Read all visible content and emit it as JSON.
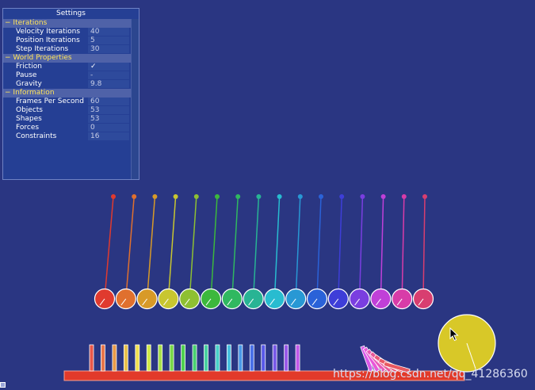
{
  "settings": {
    "title": "Settings",
    "sections": [
      {
        "label": "Iterations",
        "rows": [
          {
            "label": "Velocity Iterations",
            "value": "40"
          },
          {
            "label": "Position Iterations",
            "value": "5"
          },
          {
            "label": "Step Iterations",
            "value": "30"
          }
        ]
      },
      {
        "label": "World Properties",
        "rows": [
          {
            "label": "Friction",
            "value": "✓"
          },
          {
            "label": "Pause",
            "value": "-"
          },
          {
            "label": "Gravity",
            "value": "9.8"
          }
        ]
      },
      {
        "label": "Information",
        "rows": [
          {
            "label": "Frames Per Second",
            "value": "60"
          },
          {
            "label": "Objects",
            "value": "53"
          },
          {
            "label": "Shapes",
            "value": "53"
          },
          {
            "label": "Forces",
            "value": "0"
          },
          {
            "label": "Constraints",
            "value": "16"
          }
        ]
      }
    ],
    "collapse_glyph": "−"
  },
  "scene": {
    "pendulum_colors": [
      "#e03a2e",
      "#e0702e",
      "#d89a28",
      "#c8c630",
      "#8ec032",
      "#3cb83c",
      "#30b860",
      "#28b494",
      "#28bcd0",
      "#2898d4",
      "#2a62d8",
      "#3e3ed8",
      "#7a3ee0",
      "#c040d8",
      "#d83ca8",
      "#d83e70"
    ],
    "domino_colors": [
      "#e8574a",
      "#e8764a",
      "#e89a48",
      "#e8c04a",
      "#f0e050",
      "#d0e848",
      "#a8e048",
      "#78d848",
      "#50d050",
      "#48d070",
      "#48d0a0",
      "#48d0c8",
      "#48c0e0",
      "#4898e8",
      "#4870e8",
      "#5858e8",
      "#7858e8",
      "#9858e8",
      "#c058e8"
    ],
    "fallen_domino_colors": [
      "#d858e8",
      "#e858d8",
      "#e858b8",
      "#e85898",
      "#e85878",
      "#e85868",
      "#e85860"
    ],
    "floor_color": "#e23a2a",
    "ball_color": "#d8c828"
  },
  "watermark": "https://blog.csdn.net/qq_41286360",
  "icons": {
    "cursor": "arrow-cursor-icon",
    "check": "check-icon"
  }
}
